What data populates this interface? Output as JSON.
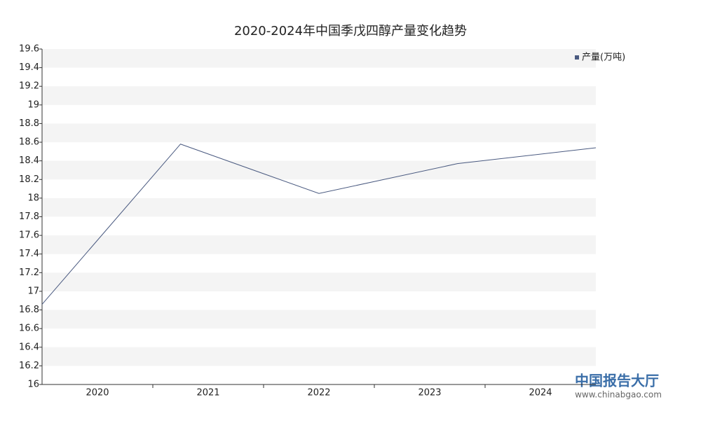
{
  "chart_data": {
    "type": "line",
    "title": "2020-2024年中国季戊四醇产量变化趋势",
    "categories": [
      "2020",
      "2021",
      "2022",
      "2023",
      "2024"
    ],
    "series": [
      {
        "name": "产量(万吨)",
        "color": "#4a5a80",
        "values": [
          16.86,
          18.58,
          18.05,
          18.37,
          18.54
        ]
      }
    ],
    "ylim": [
      16,
      19.6
    ],
    "yticks": [
      16,
      16.2,
      16.4,
      16.6,
      16.8,
      17,
      17.2,
      17.4,
      17.6,
      17.8,
      18,
      18.2,
      18.4,
      18.6,
      18.8,
      19,
      19.2,
      19.4,
      19.6
    ],
    "stripes": true,
    "legend": "top-right",
    "watermark": {
      "name": "中国报告大厅",
      "url": "www.chinabgao.com"
    }
  }
}
